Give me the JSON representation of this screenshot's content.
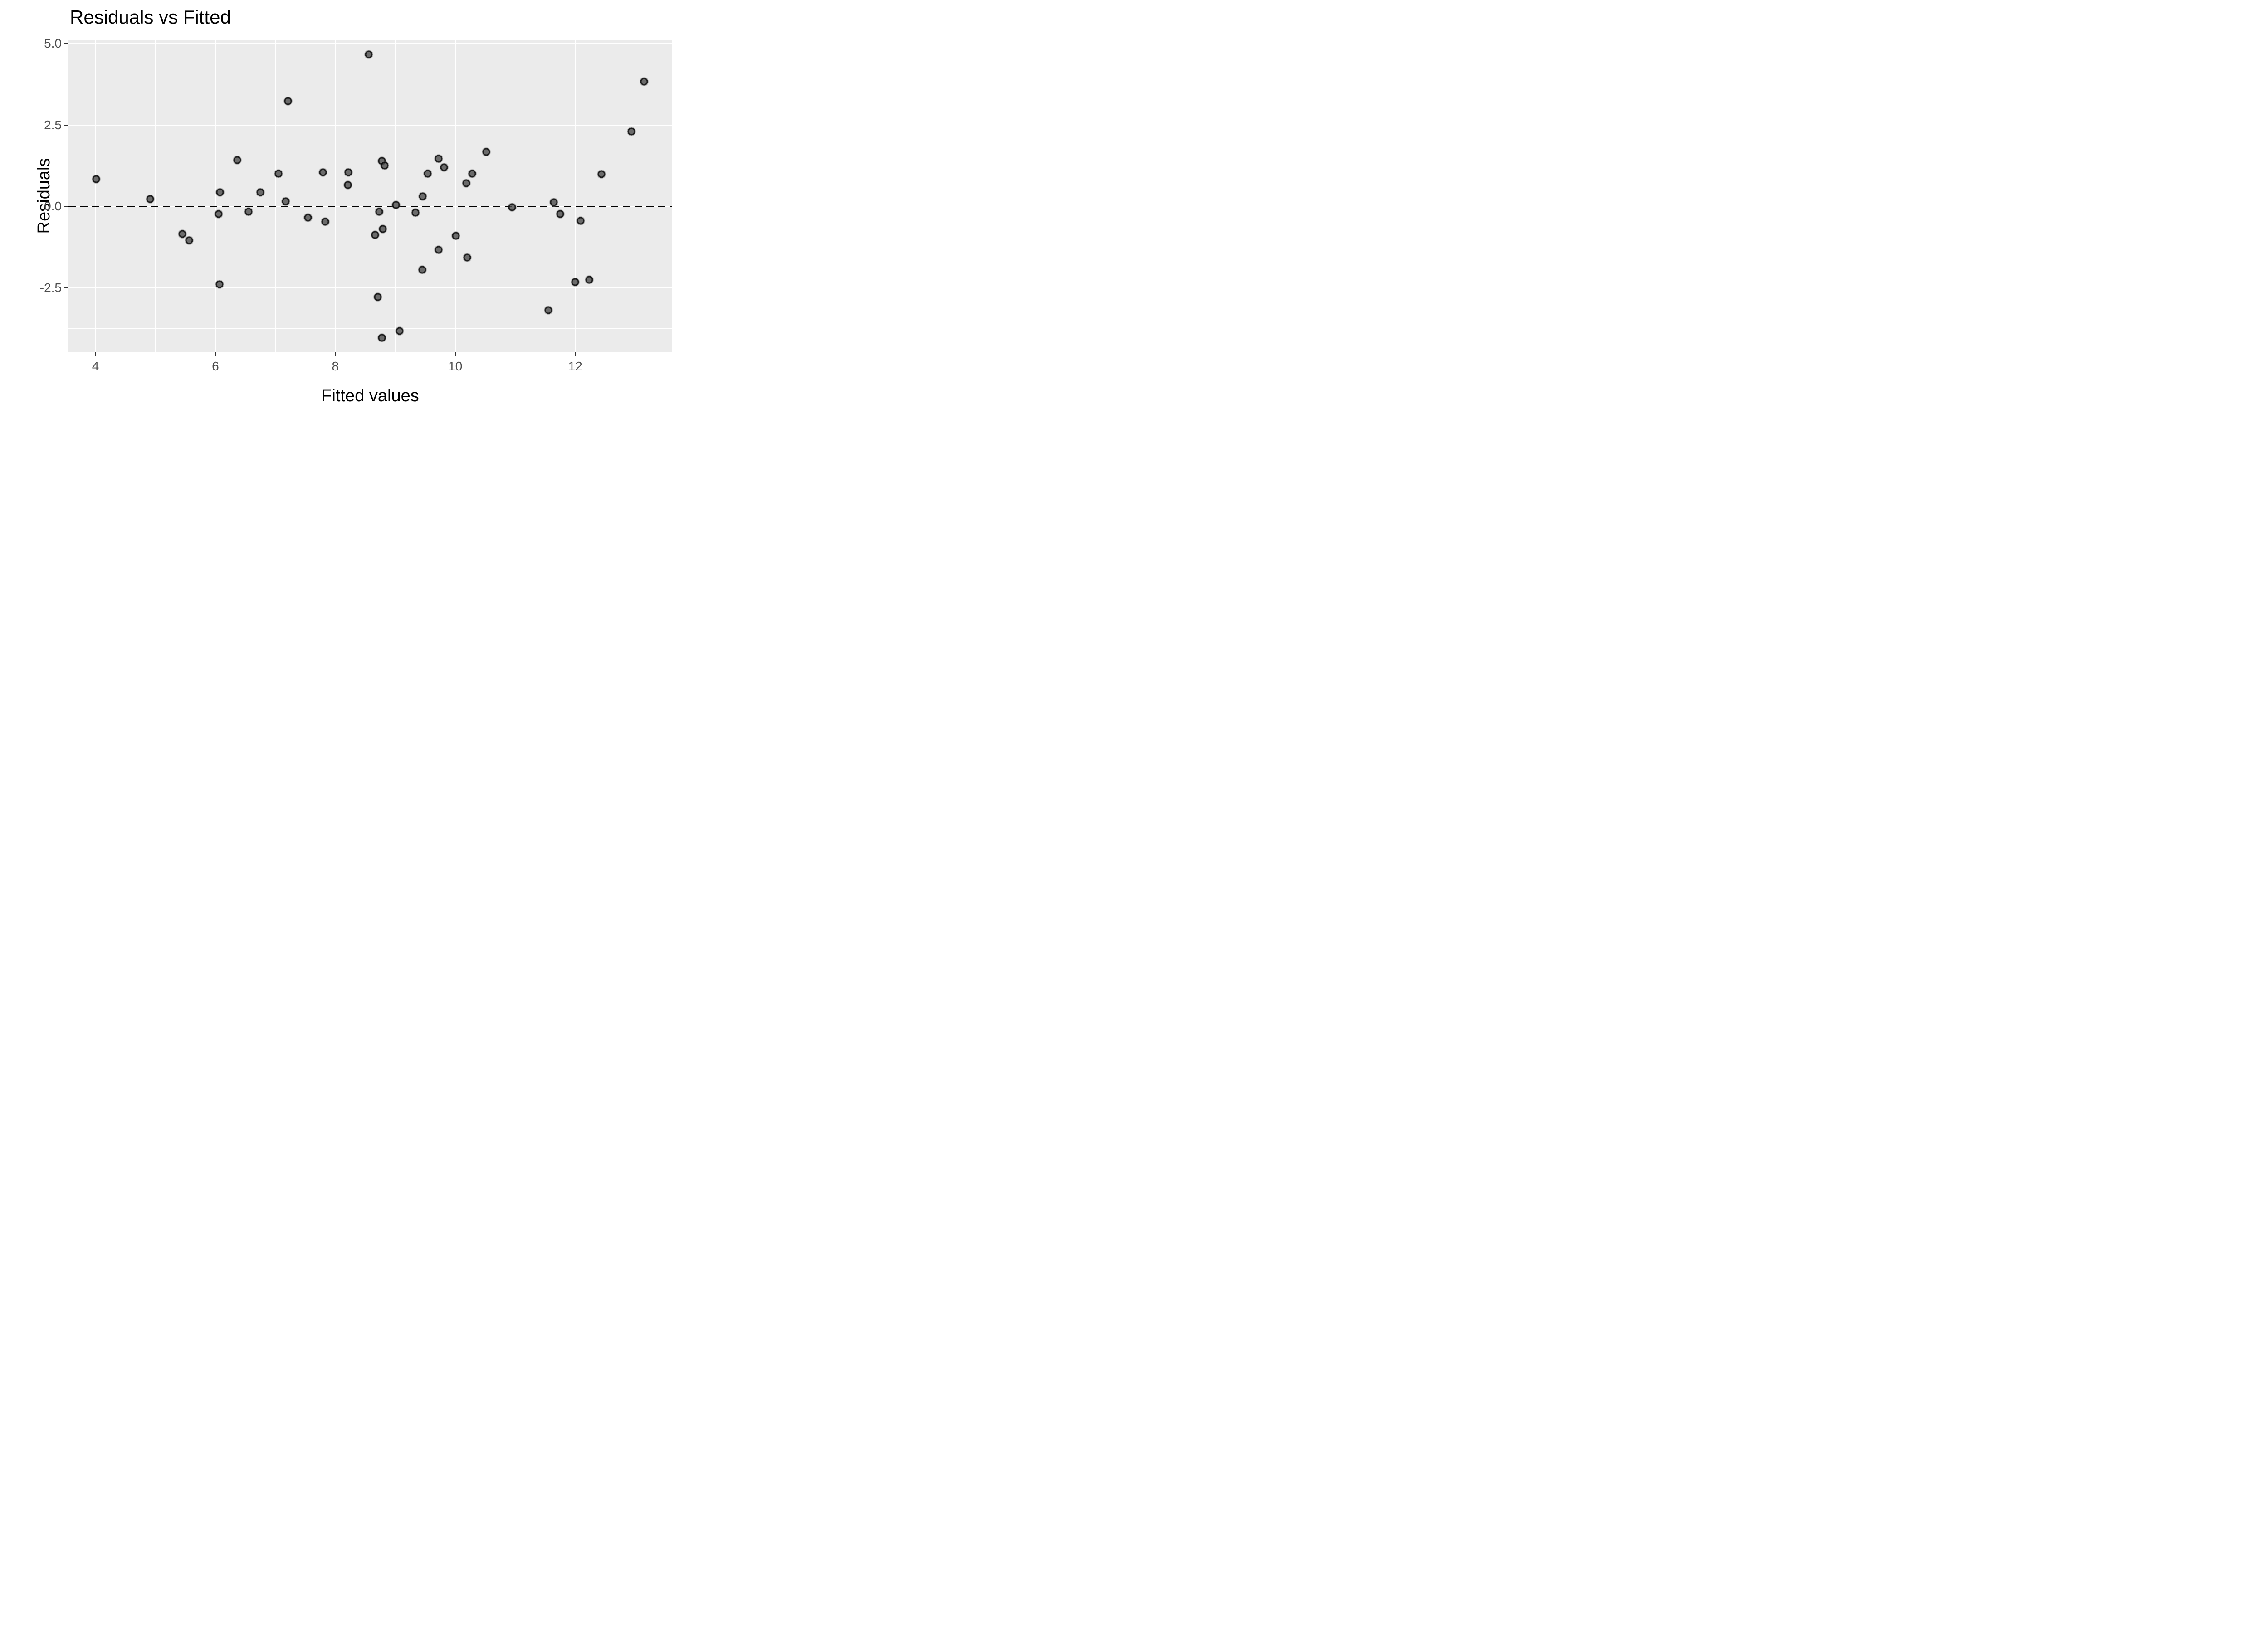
{
  "chart_data": {
    "type": "scatter",
    "title": "Residuals vs Fitted",
    "xlabel": "Fitted values",
    "ylabel": "Residuals",
    "xlim": [
      3.55,
      13.61
    ],
    "ylim": [
      -4.47,
      5.1
    ],
    "grid": true,
    "legend": false,
    "x_major_ticks": [
      {
        "v": 4,
        "label": "4"
      },
      {
        "v": 6,
        "label": "6"
      },
      {
        "v": 8,
        "label": "8"
      },
      {
        "v": 10,
        "label": "10"
      },
      {
        "v": 12,
        "label": "12"
      }
    ],
    "y_major_ticks": [
      {
        "v": 5.0,
        "label": "5.0"
      },
      {
        "v": 2.5,
        "label": "2.5"
      },
      {
        "v": 0.0,
        "label": "0.0"
      },
      {
        "v": -2.5,
        "label": "-2.5"
      }
    ],
    "x_minor_gridlines": [
      5,
      7,
      9,
      11,
      13
    ],
    "y_minor_gridlines": [
      3.75,
      1.25,
      -1.25,
      -3.75
    ],
    "zero_line": {
      "y": 0,
      "style": "dashed",
      "color": "#000000"
    },
    "colors": {
      "panel_bg": "#EBEBEB",
      "gridline": "#FFFFFF",
      "point_fill": "#6E6E6E",
      "point_stroke": "#2E2E2E",
      "tick_label": "#4D4D4D",
      "axis_title": "#000000",
      "title": "#000000",
      "tick_mark": "#333333"
    },
    "points": [
      [
        4.01,
        0.84
      ],
      [
        4.91,
        0.22
      ],
      [
        5.45,
        -0.85
      ],
      [
        5.56,
        -1.05
      ],
      [
        6.05,
        -0.23
      ],
      [
        6.07,
        -2.4
      ],
      [
        6.08,
        0.43
      ],
      [
        6.36,
        1.42
      ],
      [
        6.55,
        -0.16
      ],
      [
        6.75,
        0.44
      ],
      [
        7.05,
        1.01
      ],
      [
        7.17,
        0.16
      ],
      [
        7.21,
        3.23
      ],
      [
        7.54,
        -0.35
      ],
      [
        7.79,
        1.04
      ],
      [
        7.83,
        -0.47
      ],
      [
        8.21,
        0.66
      ],
      [
        8.22,
        1.05
      ],
      [
        8.56,
        4.67
      ],
      [
        8.66,
        -0.88
      ],
      [
        8.71,
        -2.78
      ],
      [
        8.73,
        -0.17
      ],
      [
        8.78,
        1.4
      ],
      [
        8.78,
        -4.04
      ],
      [
        8.79,
        -0.7
      ],
      [
        8.82,
        1.25
      ],
      [
        9.01,
        0.04
      ],
      [
        9.07,
        -3.83
      ],
      [
        9.34,
        -0.2
      ],
      [
        9.45,
        -1.95
      ],
      [
        9.46,
        0.31
      ],
      [
        9.54,
        1.0
      ],
      [
        9.72,
        1.47
      ],
      [
        9.72,
        -1.34
      ],
      [
        9.81,
        1.2
      ],
      [
        10.01,
        -0.91
      ],
      [
        10.18,
        0.71
      ],
      [
        10.2,
        -1.57
      ],
      [
        10.28,
        1.01
      ],
      [
        10.52,
        1.68
      ],
      [
        10.95,
        -0.03
      ],
      [
        11.55,
        -3.19
      ],
      [
        11.64,
        0.13
      ],
      [
        11.75,
        -0.24
      ],
      [
        12.0,
        -2.32
      ],
      [
        12.09,
        -0.45
      ],
      [
        12.23,
        -2.25
      ],
      [
        12.44,
        0.99
      ],
      [
        12.94,
        2.3
      ],
      [
        13.15,
        3.83
      ]
    ]
  }
}
